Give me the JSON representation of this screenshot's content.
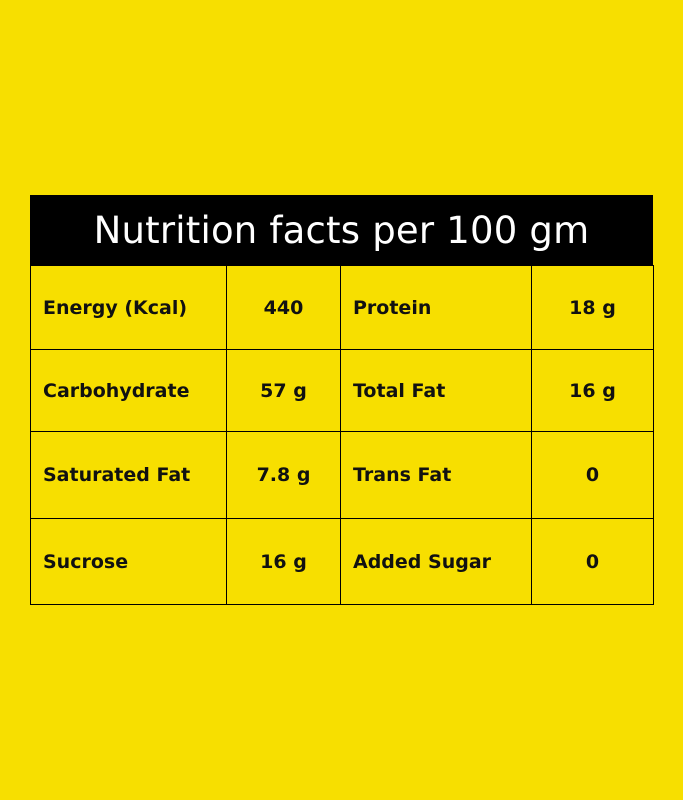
{
  "title": "Nutrition facts per 100 gm",
  "rows": [
    {
      "label1": "Energy (Kcal)",
      "value1": "440",
      "label2": "Protein",
      "value2": "18 g"
    },
    {
      "label1": "Carbohydrate",
      "value1": "57 g",
      "label2": "Total Fat",
      "value2": "16 g"
    },
    {
      "label1": "Saturated Fat",
      "value1": "7.8 g",
      "label2": "Trans Fat",
      "value2": "0"
    },
    {
      "label1": "Sucrose",
      "value1": "16 g",
      "label2": "Added Sugar",
      "value2": "0"
    }
  ],
  "colors": {
    "background": "#f7df00",
    "header_background": "#000000",
    "header_text": "#ffffff",
    "text": "#111111"
  }
}
